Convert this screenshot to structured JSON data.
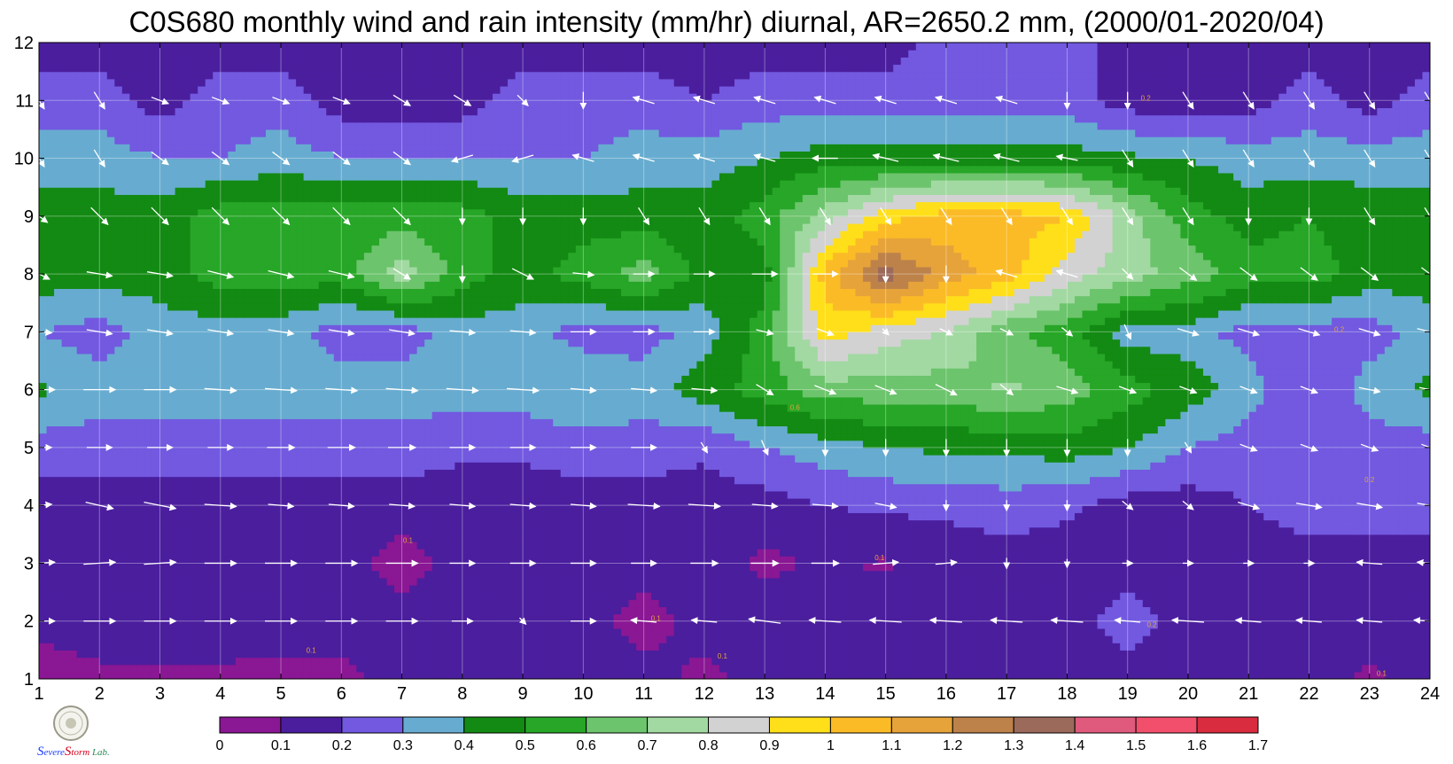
{
  "title": "C0S680 monthly wind and rain intensity (mm/hr) diurnal, AR=2650.2 mm, (2000/01-2020/04)",
  "logo": {
    "text_parts": [
      "S",
      "evere",
      "S",
      "torm",
      " Lab."
    ],
    "colors": [
      "#1e40ff",
      "#1e40ff",
      "#d4001e",
      "#d4001e",
      "#2e8b57"
    ]
  },
  "chart_data": {
    "type": "heatmap",
    "title": "C0S680 monthly wind and rain intensity (mm/hr) diurnal, AR=2650.2 mm, (2000/01-2020/04)",
    "x_ticks": [
      "1",
      "2",
      "3",
      "4",
      "5",
      "6",
      "7",
      "8",
      "9",
      "10",
      "11",
      "12",
      "13",
      "14",
      "15",
      "16",
      "17",
      "18",
      "19",
      "20",
      "21",
      "22",
      "23",
      "24"
    ],
    "y_ticks": [
      "1",
      "2",
      "3",
      "4",
      "5",
      "6",
      "7",
      "8",
      "9",
      "10",
      "11",
      "12"
    ],
    "xlim": [
      1,
      24
    ],
    "ylim": [
      1,
      12
    ],
    "grid": true,
    "colorbar": {
      "labels": [
        "0",
        "0.1",
        "0.2",
        "0.3",
        "0.4",
        "0.5",
        "0.6",
        "0.7",
        "0.8",
        "0.9",
        "1",
        "1.1",
        "1.2",
        "1.3",
        "1.4",
        "1.5",
        "1.6",
        "1.7"
      ],
      "colors": [
        "#8a1793",
        "#4b1e9e",
        "#7259e0",
        "#67acd0",
        "#138a13",
        "#27a627",
        "#6cc46c",
        "#a2d9a2",
        "#d2d2d2",
        "#ffdf19",
        "#fbbb27",
        "#e6a33a",
        "#bd824a",
        "#9c6a5a",
        "#df5a7d",
        "#f24f6c",
        "#d92c3f"
      ]
    },
    "grid_values": {
      "x": [
        1,
        2,
        3,
        4,
        5,
        6,
        7,
        8,
        9,
        10,
        11,
        12,
        13,
        14,
        15,
        16,
        17,
        18,
        19,
        20,
        21,
        22,
        23,
        24
      ],
      "rows": [
        [
          0.02,
          0.08,
          0.08,
          0.08,
          0.07,
          0.07,
          0.14,
          0.15,
          0.15,
          0.15,
          0.15,
          0.07,
          0.15,
          0.15,
          0.15,
          0.15,
          0.15,
          0.15,
          0.15,
          0.15,
          0.15,
          0.15,
          0.08,
          0.15
        ],
        [
          0.15,
          0.15,
          0.15,
          0.15,
          0.15,
          0.15,
          0.15,
          0.15,
          0.15,
          0.15,
          0.05,
          0.15,
          0.15,
          0.15,
          0.15,
          0.15,
          0.15,
          0.15,
          0.25,
          0.15,
          0.15,
          0.15,
          0.15,
          0.15
        ],
        [
          0.15,
          0.15,
          0.15,
          0.15,
          0.15,
          0.15,
          0.05,
          0.15,
          0.15,
          0.15,
          0.15,
          0.15,
          0.08,
          0.11,
          0.09,
          0.15,
          0.15,
          0.15,
          0.15,
          0.15,
          0.15,
          0.15,
          0.15,
          0.15
        ],
        [
          0.15,
          0.15,
          0.15,
          0.15,
          0.15,
          0.15,
          0.15,
          0.15,
          0.15,
          0.15,
          0.15,
          0.15,
          0.15,
          0.2,
          0.22,
          0.22,
          0.25,
          0.22,
          0.15,
          0.15,
          0.2,
          0.25,
          0.25,
          0.25
        ],
        [
          0.25,
          0.25,
          0.25,
          0.25,
          0.25,
          0.25,
          0.25,
          0.22,
          0.22,
          0.25,
          0.25,
          0.22,
          0.3,
          0.35,
          0.4,
          0.42,
          0.42,
          0.45,
          0.4,
          0.3,
          0.25,
          0.2,
          0.25,
          0.25
        ],
        [
          0.42,
          0.35,
          0.35,
          0.35,
          0.35,
          0.35,
          0.35,
          0.35,
          0.35,
          0.41,
          0.35,
          0.45,
          0.55,
          0.65,
          0.65,
          0.65,
          0.72,
          0.65,
          0.55,
          0.45,
          0.35,
          0.2,
          0.35,
          0.42
        ],
        [
          0.3,
          0.25,
          0.35,
          0.35,
          0.35,
          0.25,
          0.25,
          0.35,
          0.35,
          0.25,
          0.25,
          0.35,
          0.55,
          0.95,
          0.85,
          0.8,
          0.62,
          0.55,
          0.35,
          0.35,
          0.25,
          0.25,
          0.25,
          0.35
        ],
        [
          0.45,
          0.45,
          0.45,
          0.55,
          0.55,
          0.55,
          0.75,
          0.55,
          0.45,
          0.55,
          0.65,
          0.45,
          0.45,
          1.05,
          1.35,
          1.15,
          1.05,
          0.85,
          0.75,
          0.65,
          0.55,
          0.55,
          0.45,
          0.45
        ],
        [
          0.45,
          0.45,
          0.45,
          0.55,
          0.55,
          0.55,
          0.55,
          0.55,
          0.45,
          0.45,
          0.45,
          0.45,
          0.55,
          0.75,
          0.95,
          1.05,
          1.05,
          1.0,
          0.75,
          0.55,
          0.45,
          0.5,
          0.45,
          0.45
        ],
        [
          0.35,
          0.35,
          0.3,
          0.3,
          0.35,
          0.3,
          0.3,
          0.3,
          0.3,
          0.3,
          0.35,
          0.35,
          0.4,
          0.45,
          0.45,
          0.45,
          0.45,
          0.45,
          0.42,
          0.4,
          0.35,
          0.35,
          0.35,
          0.35
        ],
        [
          0.25,
          0.25,
          0.15,
          0.25,
          0.25,
          0.15,
          0.15,
          0.15,
          0.25,
          0.25,
          0.25,
          0.2,
          0.25,
          0.25,
          0.25,
          0.25,
          0.25,
          0.25,
          0.15,
          0.15,
          0.15,
          0.25,
          0.15,
          0.25
        ],
        [
          0.15,
          0.15,
          0.15,
          0.15,
          0.15,
          0.15,
          0.15,
          0.15,
          0.15,
          0.15,
          0.15,
          0.15,
          0.15,
          0.15,
          0.15,
          0.25,
          0.25,
          0.25,
          0.15,
          0.15,
          0.15,
          0.15,
          0.15,
          0.15
        ]
      ]
    },
    "contour_labels": {
      "values": [
        "0.1",
        "0.1",
        "0.1",
        "0.1",
        "0.1",
        "0.2",
        "0.2",
        "0.2",
        "0.2",
        "0.1",
        "0.6"
      ],
      "x": [
        5.5,
        7.1,
        11.2,
        12.3,
        14.9,
        19.4,
        19.3,
        22.5,
        23.0,
        23.2,
        13.5
      ],
      "y": [
        1.45,
        3.35,
        2.0,
        1.35,
        3.05,
        1.9,
        11.0,
        7.0,
        4.4,
        1.05,
        5.65
      ]
    },
    "wind": {
      "x": [
        1,
        2,
        3,
        4,
        5,
        6,
        7,
        8,
        9,
        10,
        11,
        12,
        13,
        14,
        15,
        16,
        17,
        18,
        19,
        20,
        21,
        22,
        23,
        24
      ],
      "y": [
        2,
        3,
        4,
        5,
        6,
        7,
        8,
        9,
        10,
        11
      ],
      "u": [
        [
          1.5,
          1.5,
          1.5,
          1.5,
          1.5,
          1.5,
          1.5,
          1.0,
          0.3,
          1.2,
          -1.2,
          -1.2,
          -1.5,
          -1.5,
          -1.5,
          -1.5,
          -1.5,
          -1.5,
          -1.2,
          -1.5,
          -1.2,
          -1.2,
          -1.2,
          -1.5
        ],
        [
          1.5,
          1.5,
          1.5,
          1.5,
          1.5,
          1.5,
          1.5,
          1.2,
          1.2,
          1.2,
          1.2,
          1.3,
          1.3,
          1.3,
          1.2,
          1.0,
          0.0,
          0.0,
          0.5,
          0.5,
          0.5,
          0.5,
          -1.2,
          -1.2
        ],
        [
          1.2,
          1.3,
          1.5,
          1.5,
          1.2,
          1.2,
          1.2,
          1.2,
          1.2,
          1.2,
          1.5,
          1.5,
          1.2,
          1.2,
          1.0,
          0.0,
          0.0,
          0.0,
          0.5,
          0.5,
          1.0,
          1.2,
          1.2,
          1.2
        ],
        [
          1.2,
          1.2,
          1.2,
          1.2,
          1.3,
          1.3,
          1.3,
          1.2,
          1.2,
          1.2,
          1.2,
          0.3,
          0.3,
          0.0,
          0.0,
          0.0,
          0.0,
          0.0,
          0.0,
          0.3,
          0.8,
          0.8,
          0.8,
          0.8
        ],
        [
          1.5,
          1.5,
          1.5,
          1.5,
          1.5,
          1.5,
          1.5,
          1.5,
          1.5,
          1.2,
          1.2,
          1.2,
          0.8,
          1.0,
          1.0,
          1.0,
          0.6,
          1.0,
          0.8,
          0.8,
          0.8,
          0.8,
          1.0,
          1.0
        ],
        [
          1.2,
          1.2,
          1.2,
          1.2,
          1.2,
          1.2,
          1.2,
          1.2,
          1.2,
          1.2,
          1.0,
          1.0,
          0.8,
          0.8,
          0.3,
          0.6,
          0.6,
          0.5,
          0.3,
          1.0,
          1.0,
          1.0,
          1.0,
          1.2
        ],
        [
          1.0,
          1.2,
          1.2,
          1.2,
          1.2,
          1.2,
          0.8,
          0.0,
          1.0,
          1.0,
          1.0,
          1.0,
          1.2,
          1.2,
          0.0,
          0.0,
          -1.0,
          -1.0,
          0.5,
          0.8,
          0.8,
          0.8,
          0.8,
          0.8
        ],
        [
          0.8,
          0.8,
          0.8,
          0.8,
          0.8,
          0.8,
          0.8,
          0.0,
          0.0,
          0.0,
          0.5,
          0.5,
          0.5,
          0.5,
          0.5,
          0.5,
          0.5,
          0.5,
          0.5,
          0.5,
          0.0,
          0.0,
          0.5,
          0.5
        ],
        [
          0.5,
          0.5,
          0.8,
          0.8,
          0.8,
          0.8,
          0.8,
          -1.0,
          -1.0,
          -1.0,
          -1.0,
          -1.0,
          -1.0,
          -1.2,
          -1.2,
          -1.2,
          -1.2,
          -1.0,
          0.5,
          0.5,
          0.5,
          0.5,
          0.5,
          0.5
        ],
        [
          0.5,
          0.5,
          0.8,
          0.8,
          0.8,
          0.8,
          0.8,
          0.8,
          0.5,
          0.0,
          -1.0,
          -1.0,
          -1.0,
          -1.0,
          -1.0,
          -1.0,
          -1.0,
          0.0,
          0.0,
          0.5,
          0.5,
          0.5,
          0.5,
          0.5
        ]
      ],
      "v": [
        [
          0.0,
          0.0,
          0.0,
          0.0,
          0.0,
          0.0,
          0.0,
          0.0,
          -0.3,
          0.0,
          0.1,
          0.1,
          0.2,
          0.1,
          0.1,
          0.1,
          0.1,
          0.1,
          0.1,
          0.1,
          0.1,
          0.1,
          0.1,
          0.1
        ],
        [
          0.1,
          0.1,
          0.1,
          0.0,
          0.0,
          0.0,
          0.0,
          0.0,
          0.0,
          0.0,
          0.0,
          0.0,
          0.0,
          0.0,
          0.1,
          0.1,
          -0.5,
          -0.4,
          0.0,
          0.0,
          0.0,
          0.0,
          0.1,
          0.1
        ],
        [
          0.1,
          -0.3,
          -0.3,
          -0.1,
          -0.1,
          -0.1,
          -0.1,
          -0.1,
          -0.1,
          -0.1,
          -0.1,
          -0.1,
          -0.1,
          -0.1,
          -0.2,
          -0.5,
          -0.5,
          -0.5,
          -0.4,
          -0.4,
          -0.3,
          -0.2,
          -0.2,
          -0.2
        ],
        [
          0.0,
          0.0,
          0.0,
          0.0,
          0.0,
          0.0,
          0.0,
          0.0,
          0.0,
          0.0,
          0.0,
          -0.5,
          -0.7,
          -0.8,
          -0.8,
          -0.8,
          -0.8,
          -0.8,
          -0.8,
          -0.5,
          -0.3,
          -0.3,
          -0.3,
          -0.3
        ],
        [
          0.0,
          0.0,
          0.0,
          -0.1,
          -0.1,
          -0.1,
          -0.1,
          -0.1,
          -0.1,
          -0.1,
          -0.1,
          -0.1,
          -0.5,
          -0.4,
          -0.4,
          -0.5,
          -0.5,
          -0.3,
          -0.3,
          -0.3,
          -0.3,
          -0.3,
          -0.2,
          -0.2
        ],
        [
          -0.1,
          -0.2,
          -0.2,
          -0.2,
          -0.2,
          -0.2,
          -0.2,
          -0.1,
          -0.1,
          0.0,
          0.0,
          0.0,
          -0.2,
          -0.3,
          -0.3,
          -0.3,
          -0.3,
          -0.4,
          -0.7,
          -0.3,
          -0.3,
          -0.3,
          -0.3,
          -0.3
        ],
        [
          -0.5,
          -0.2,
          -0.2,
          -0.3,
          -0.3,
          -0.3,
          -0.5,
          -0.8,
          -0.5,
          -0.1,
          0.0,
          0.0,
          0.0,
          0.0,
          -0.8,
          -0.8,
          0.3,
          0.3,
          -0.5,
          -0.6,
          -0.6,
          -0.6,
          -0.6,
          -0.6
        ],
        [
          -0.6,
          -0.8,
          -0.8,
          -0.8,
          -0.8,
          -0.8,
          -0.8,
          -0.8,
          -0.8,
          -0.8,
          -0.8,
          -0.8,
          -0.8,
          -0.8,
          -0.8,
          -0.8,
          -0.8,
          -0.8,
          -0.8,
          -0.8,
          -0.8,
          -0.8,
          -0.8,
          -0.8
        ],
        [
          -0.8,
          -0.8,
          -0.6,
          -0.6,
          -0.6,
          -0.6,
          -0.6,
          -0.3,
          -0.3,
          0.3,
          0.3,
          0.3,
          0.3,
          0.0,
          0.3,
          0.3,
          0.3,
          0.2,
          -0.8,
          -0.8,
          -0.8,
          -0.8,
          -0.8,
          -0.8
        ],
        [
          -0.8,
          -0.8,
          -0.3,
          -0.3,
          -0.3,
          -0.3,
          -0.5,
          -0.5,
          -0.5,
          -0.8,
          0.3,
          0.3,
          0.3,
          0.3,
          0.3,
          0.3,
          0.3,
          -0.8,
          -0.8,
          -0.8,
          -0.8,
          -0.8,
          -0.8,
          -0.8
        ]
      ]
    }
  }
}
